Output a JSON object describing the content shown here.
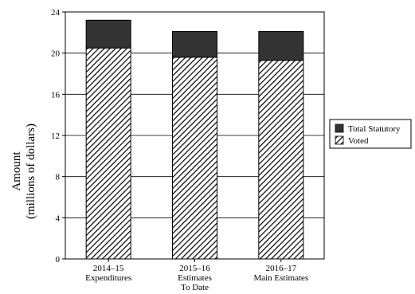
{
  "chart_data": {
    "type": "bar",
    "stacked": true,
    "categories": [
      [
        "2014–15",
        "Expenditures"
      ],
      [
        "2015–16",
        "Estimates",
        "To Date"
      ],
      [
        "2016–17",
        "Main Estimates"
      ]
    ],
    "series": [
      {
        "name": "Voted",
        "values": [
          20.5,
          19.6,
          19.3
        ],
        "pattern": "diagonal-hatch"
      },
      {
        "name": "Total Statutory",
        "values": [
          2.7,
          2.5,
          2.8
        ],
        "color": "#333333"
      }
    ],
    "ylabel": [
      "Amount",
      "(millions of dollars)"
    ],
    "ylim": [
      0,
      24
    ],
    "yticks": [
      0,
      4,
      8,
      12,
      16,
      20,
      24
    ],
    "grid": true,
    "legend": "right"
  }
}
